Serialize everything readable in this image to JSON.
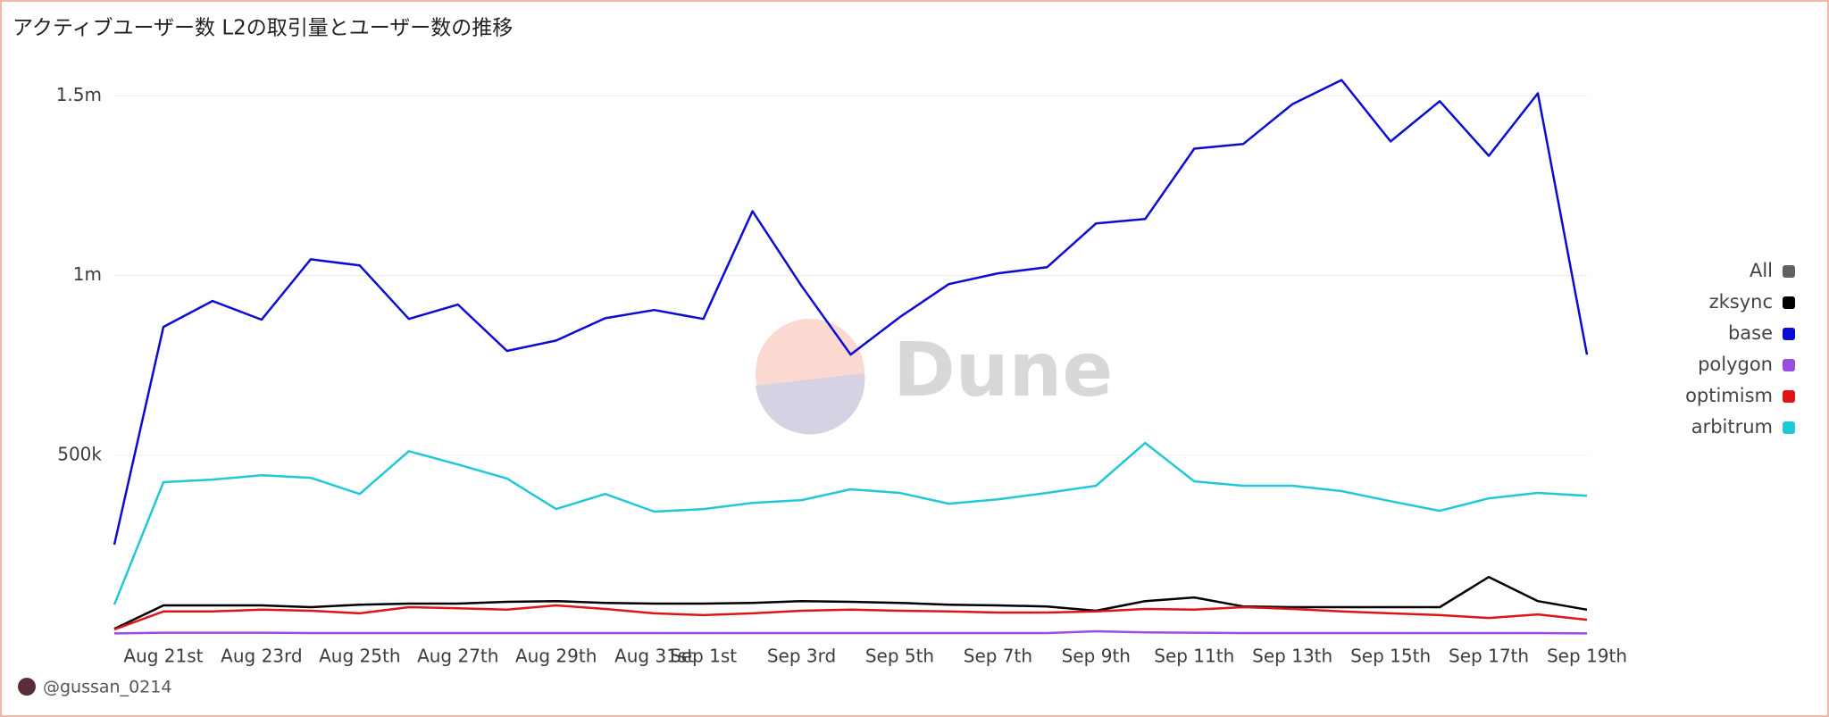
{
  "chart_data": {
    "type": "line",
    "title": "アクティブユーザー数  L2の取引量とユーザー数の推移",
    "watermark": "Dune",
    "author": "@gussan_0214",
    "categories": [
      null,
      "Aug 21st",
      null,
      "Aug 23rd",
      null,
      "Aug 25th",
      null,
      "Aug 27th",
      null,
      "Aug 29th",
      null,
      "Aug 31st",
      "Sep 1st",
      null,
      "Sep 3rd",
      null,
      "Sep 5th",
      null,
      "Sep 7th",
      null,
      "Sep 9th",
      null,
      "Sep 11th",
      null,
      "Sep 13th",
      null,
      "Sep 15th",
      null,
      "Sep 17th",
      null,
      "Sep 19th"
    ],
    "series": [
      {
        "name": "All",
        "color": "#5f6163",
        "values": [
          null,
          null,
          null,
          null,
          null,
          null,
          null,
          null,
          null,
          null,
          null,
          null,
          null,
          null,
          null,
          null,
          null,
          null,
          null,
          null,
          null,
          null,
          null,
          null,
          null,
          null,
          null,
          null,
          null,
          null,
          null
        ]
      },
      {
        "name": "zksync",
        "color": "#000000",
        "values": [
          17000,
          82000,
          82000,
          82000,
          77000,
          84000,
          87000,
          87000,
          92000,
          94000,
          89000,
          87000,
          87000,
          89000,
          94000,
          92000,
          89000,
          84000,
          82000,
          79000,
          67000,
          94000,
          104000,
          79000,
          77000,
          77000,
          77000,
          77000,
          161000,
          94000,
          70000
        ]
      },
      {
        "name": "base",
        "color": "#0b0bd4",
        "values": [
          251000,
          857000,
          929000,
          877000,
          1045000,
          1028000,
          879000,
          919000,
          790000,
          819000,
          881000,
          904000,
          879000,
          1179000,
          971000,
          780000,
          884000,
          976000,
          1006000,
          1023000,
          1145000,
          1157000,
          1353000,
          1366000,
          1477000,
          1544000,
          1373000,
          1485000,
          1333000,
          1507000,
          780000
        ]
      },
      {
        "name": "polygon",
        "color": "#9b4de0",
        "values": [
          4000,
          6000,
          6000,
          6000,
          5000,
          5000,
          5000,
          5000,
          5000,
          5000,
          5000,
          5000,
          5000,
          5000,
          5000,
          5000,
          5000,
          5000,
          5000,
          5000,
          10000,
          7000,
          6000,
          5000,
          5000,
          5000,
          5000,
          5000,
          5000,
          5000,
          4000
        ]
      },
      {
        "name": "optimism",
        "color": "#e01414",
        "values": [
          15000,
          65000,
          65000,
          70000,
          67000,
          60000,
          77000,
          74000,
          70000,
          82000,
          72000,
          60000,
          55000,
          60000,
          67000,
          70000,
          67000,
          65000,
          62000,
          62000,
          65000,
          72000,
          70000,
          77000,
          72000,
          65000,
          60000,
          55000,
          47000,
          57000,
          42000
        ]
      },
      {
        "name": "arbitrum",
        "color": "#1fc9d8",
        "values": [
          84000,
          425000,
          432000,
          444000,
          437000,
          392000,
          511000,
          474000,
          435000,
          350000,
          392000,
          343000,
          350000,
          367000,
          375000,
          405000,
          395000,
          365000,
          377000,
          395000,
          415000,
          534000,
          427000,
          415000,
          415000,
          400000,
          372000,
          345000,
          380000,
          395000,
          387000
        ]
      }
    ],
    "ylim": [
      0,
      1620000
    ],
    "yticks": [
      {
        "value": 500000,
        "label": "500k"
      },
      {
        "value": 1000000,
        "label": "1m"
      },
      {
        "value": 1500000,
        "label": "1.5m"
      }
    ],
    "grid": true,
    "legend": "right"
  }
}
